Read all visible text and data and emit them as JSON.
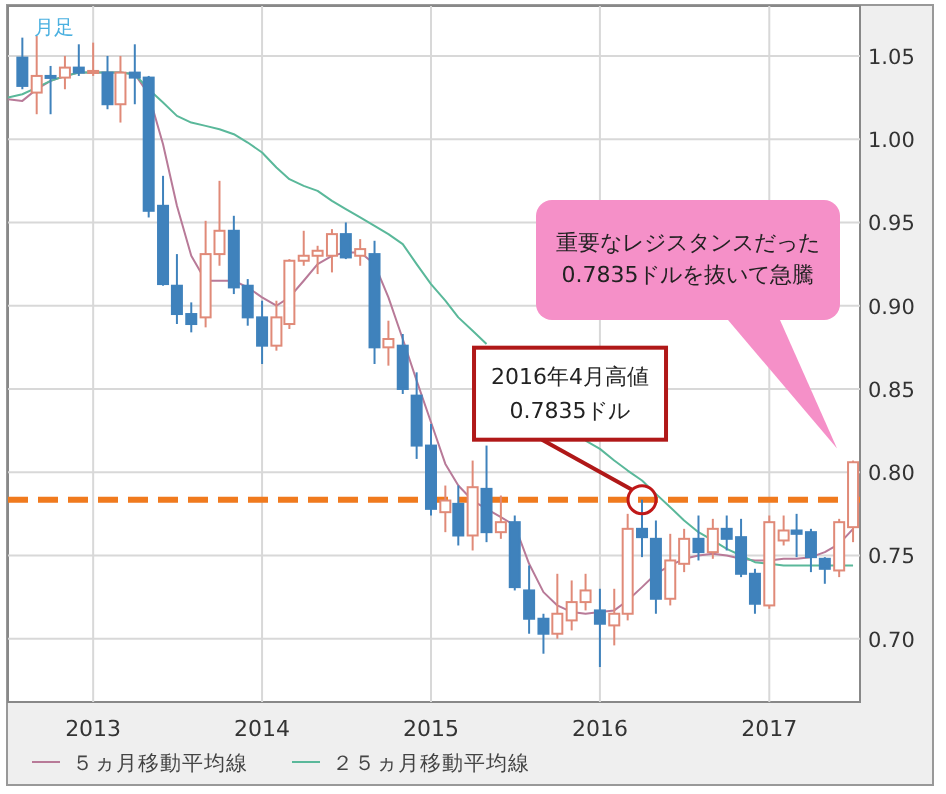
{
  "chart_data": {
    "type": "candlestick",
    "xlim": [
      "2012-07-01",
      "2017-07-16"
    ],
    "ylim": [
      0.662,
      1.08
    ],
    "xticks": [
      {
        "value": "2013-01-01",
        "label": "2013"
      },
      {
        "value": "2014-01-01",
        "label": "2014"
      },
      {
        "value": "2015-01-01",
        "label": "2015"
      },
      {
        "value": "2016-01-01",
        "label": "2016"
      },
      {
        "value": "2017-01-01",
        "label": "2017"
      }
    ],
    "yticks": [
      {
        "value": 0.7,
        "label": "0.70"
      },
      0.75,
      {
        "value": 0.8,
        "label": "0.80"
      },
      0.85,
      {
        "value": 0.9,
        "label": "0.90"
      },
      0.95,
      {
        "value": 1.0,
        "label": "1.00"
      },
      1.05
    ],
    "grid": true,
    "legend": "bottom",
    "x": [
      "2012-08",
      "2012-09",
      "2012-10",
      "2012-11",
      "2012-12",
      "2013-01",
      "2013-02",
      "2013-03",
      "2013-04",
      "2013-05",
      "2013-06",
      "2013-07",
      "2013-08",
      "2013-09",
      "2013-10",
      "2013-11",
      "2013-12",
      "2014-01",
      "2014-02",
      "2014-03",
      "2014-04",
      "2014-05",
      "2014-06",
      "2014-07",
      "2014-08",
      "2014-09",
      "2014-10",
      "2014-11",
      "2014-12",
      "2015-01",
      "2015-02",
      "2015-03",
      "2015-04",
      "2015-05",
      "2015-06",
      "2015-07",
      "2015-08",
      "2015-09",
      "2015-10",
      "2015-11",
      "2015-12",
      "2016-01",
      "2016-02",
      "2016-03",
      "2016-04",
      "2016-05",
      "2016-06",
      "2016-07",
      "2016-08",
      "2016-09",
      "2016-10",
      "2016-11",
      "2016-12",
      "2017-01",
      "2017-02",
      "2017-03",
      "2017-04",
      "2017-05",
      "2017-06",
      "2017-07"
    ],
    "ohlc": [
      [
        1.049,
        1.061,
        1.03,
        1.032
      ],
      [
        1.028,
        1.062,
        1.015,
        1.038
      ],
      [
        1.038,
        1.044,
        1.015,
        1.037
      ],
      [
        1.037,
        1.05,
        1.03,
        1.043
      ],
      [
        1.043,
        1.057,
        1.038,
        1.04
      ],
      [
        1.04,
        1.058,
        1.038,
        1.041
      ],
      [
        1.04,
        1.05,
        1.018,
        1.021
      ],
      [
        1.021,
        1.05,
        1.01,
        1.04
      ],
      [
        1.04,
        1.057,
        1.021,
        1.037
      ],
      [
        1.037,
        1.038,
        0.953,
        0.957
      ],
      [
        0.96,
        0.978,
        0.912,
        0.913
      ],
      [
        0.912,
        0.931,
        0.889,
        0.895
      ],
      [
        0.895,
        0.902,
        0.884,
        0.889
      ],
      [
        0.893,
        0.951,
        0.887,
        0.931
      ],
      [
        0.931,
        0.975,
        0.924,
        0.945
      ],
      [
        0.945,
        0.954,
        0.907,
        0.911
      ],
      [
        0.912,
        0.916,
        0.888,
        0.893
      ],
      [
        0.893,
        0.903,
        0.865,
        0.876
      ],
      [
        0.876,
        0.903,
        0.873,
        0.893
      ],
      [
        0.889,
        0.928,
        0.886,
        0.927
      ],
      [
        0.927,
        0.945,
        0.924,
        0.93
      ],
      [
        0.93,
        0.936,
        0.919,
        0.933
      ],
      [
        0.93,
        0.946,
        0.92,
        0.943
      ],
      [
        0.943,
        0.95,
        0.928,
        0.929
      ],
      [
        0.93,
        0.94,
        0.924,
        0.934
      ],
      [
        0.931,
        0.939,
        0.865,
        0.875
      ],
      [
        0.875,
        0.891,
        0.864,
        0.88
      ],
      [
        0.876,
        0.883,
        0.847,
        0.85
      ],
      [
        0.846,
        0.86,
        0.808,
        0.816
      ],
      [
        0.816,
        0.829,
        0.774,
        0.778
      ],
      [
        0.776,
        0.792,
        0.764,
        0.783
      ],
      [
        0.781,
        0.792,
        0.756,
        0.762
      ],
      [
        0.762,
        0.807,
        0.753,
        0.791
      ],
      [
        0.79,
        0.816,
        0.758,
        0.764
      ],
      [
        0.764,
        0.786,
        0.76,
        0.77
      ],
      [
        0.77,
        0.774,
        0.729,
        0.731
      ],
      [
        0.729,
        0.744,
        0.703,
        0.712
      ],
      [
        0.712,
        0.715,
        0.691,
        0.703
      ],
      [
        0.703,
        0.739,
        0.7,
        0.715
      ],
      [
        0.711,
        0.735,
        0.705,
        0.722
      ],
      [
        0.722,
        0.739,
        0.717,
        0.729
      ],
      [
        0.717,
        0.73,
        0.683,
        0.709
      ],
      [
        0.708,
        0.73,
        0.696,
        0.715
      ],
      [
        0.715,
        0.775,
        0.711,
        0.766
      ],
      [
        0.766,
        0.7835,
        0.749,
        0.761
      ],
      [
        0.76,
        0.771,
        0.715,
        0.724
      ],
      [
        0.724,
        0.763,
        0.72,
        0.747
      ],
      [
        0.745,
        0.766,
        0.74,
        0.76
      ],
      [
        0.76,
        0.774,
        0.747,
        0.752
      ],
      [
        0.752,
        0.772,
        0.748,
        0.766
      ],
      [
        0.766,
        0.774,
        0.753,
        0.76
      ],
      [
        0.761,
        0.772,
        0.737,
        0.739
      ],
      [
        0.739,
        0.742,
        0.715,
        0.721
      ],
      [
        0.72,
        0.774,
        0.718,
        0.77
      ],
      [
        0.759,
        0.774,
        0.756,
        0.765
      ],
      [
        0.765,
        0.775,
        0.749,
        0.763
      ],
      [
        0.764,
        0.766,
        0.74,
        0.749
      ],
      [
        0.748,
        0.749,
        0.733,
        0.742
      ],
      [
        0.741,
        0.772,
        0.737,
        0.77
      ],
      [
        0.767,
        0.807,
        0.758,
        0.806
      ]
    ],
    "colors": [
      "#3f82bc",
      "#e08a78",
      "#3f82bc",
      "#e08a78",
      "#3f82bc",
      "#e08a78",
      "#3f82bc",
      "#e08a78",
      "#3f82bc",
      "#3f82bc",
      "#3f82bc",
      "#3f82bc",
      "#3f82bc",
      "#e08a78",
      "#e08a78",
      "#3f82bc",
      "#3f82bc",
      "#3f82bc",
      "#e08a78",
      "#e08a78",
      "#e08a78",
      "#e08a78",
      "#e08a78",
      "#3f82bc",
      "#e08a78",
      "#3f82bc",
      "#e08a78",
      "#3f82bc",
      "#3f82bc",
      "#3f82bc",
      "#e08a78",
      "#3f82bc",
      "#e08a78",
      "#3f82bc",
      "#e08a78",
      "#3f82bc",
      "#3f82bc",
      "#3f82bc",
      "#e08a78",
      "#e08a78",
      "#e08a78",
      "#3f82bc",
      "#e08a78",
      "#e08a78",
      "#3f82bc",
      "#3f82bc",
      "#e08a78",
      "#e08a78",
      "#3f82bc",
      "#e08a78",
      "#3f82bc",
      "#3f82bc",
      "#3f82bc",
      "#e08a78",
      "#e08a78",
      "#3f82bc",
      "#3f82bc",
      "#3f82bc",
      "#e08a78",
      "#e08a78"
    ],
    "series": [
      {
        "name": "５ヵ月移動平均線",
        "type": "line",
        "color": "#b87a98",
        "x": [
          "2012-07",
          "2012-08",
          "2012-09",
          "2012-10",
          "2012-11",
          "2012-12",
          "2013-01",
          "2013-02",
          "2013-03",
          "2013-04",
          "2013-05",
          "2013-06",
          "2013-07",
          "2013-08",
          "2013-09",
          "2013-10",
          "2013-11",
          "2013-12",
          "2014-01",
          "2014-02",
          "2014-03",
          "2014-04",
          "2014-05",
          "2014-06",
          "2014-07",
          "2014-08",
          "2014-09",
          "2014-10",
          "2014-11",
          "2014-12",
          "2015-01",
          "2015-02",
          "2015-03",
          "2015-04",
          "2015-05",
          "2015-06",
          "2015-07",
          "2015-08",
          "2015-09",
          "2015-10",
          "2015-11",
          "2015-12",
          "2016-01",
          "2016-02",
          "2016-03",
          "2016-04",
          "2016-05",
          "2016-06",
          "2016-07",
          "2016-08",
          "2016-09",
          "2016-10",
          "2016-11",
          "2016-12",
          "2017-01",
          "2017-02",
          "2017-03",
          "2017-04",
          "2017-05",
          "2017-06",
          "2017-07"
        ],
        "values": [
          1.024,
          1.023,
          1.03,
          1.035,
          1.038,
          1.04,
          1.04,
          1.04,
          1.04,
          1.039,
          1.027,
          0.997,
          0.96,
          0.93,
          0.915,
          0.915,
          0.915,
          0.911,
          0.905,
          0.9,
          0.905,
          0.915,
          0.925,
          0.93,
          0.932,
          0.932,
          0.925,
          0.905,
          0.88,
          0.855,
          0.83,
          0.805,
          0.792,
          0.783,
          0.778,
          0.773,
          0.768,
          0.745,
          0.728,
          0.72,
          0.716,
          0.715,
          0.716,
          0.717,
          0.723,
          0.731,
          0.739,
          0.744,
          0.748,
          0.75,
          0.751,
          0.75,
          0.748,
          0.747,
          0.747,
          0.748,
          0.748,
          0.749,
          0.752,
          0.757,
          0.766
        ]
      },
      {
        "name": "２５ヵ月移動平均線",
        "type": "line",
        "color": "#5ab89a",
        "x": [
          "2012-07",
          "2012-08",
          "2012-09",
          "2012-10",
          "2012-11",
          "2012-12",
          "2013-01",
          "2013-02",
          "2013-03",
          "2013-04",
          "2013-05",
          "2013-06",
          "2013-07",
          "2013-08",
          "2013-09",
          "2013-10",
          "2013-11",
          "2013-12",
          "2014-01",
          "2014-02",
          "2014-03",
          "2014-04",
          "2014-05",
          "2014-06",
          "2014-07",
          "2014-08",
          "2014-09",
          "2014-10",
          "2014-11",
          "2014-12",
          "2015-01",
          "2015-02",
          "2015-03",
          "2015-04",
          "2015-05",
          "2015-06",
          "2015-07",
          "2015-08",
          "2015-09",
          "2015-10",
          "2015-11",
          "2015-12",
          "2016-01",
          "2016-02",
          "2016-03",
          "2016-04",
          "2016-05",
          "2016-06",
          "2016-07",
          "2016-08",
          "2016-09",
          "2016-10",
          "2016-11",
          "2016-12",
          "2017-01",
          "2017-02",
          "2017-03",
          "2017-04",
          "2017-05",
          "2017-06",
          "2017-07"
        ],
        "values": [
          1.025,
          1.027,
          1.031,
          1.035,
          1.038,
          1.04,
          1.04,
          1.04,
          1.04,
          1.039,
          1.03,
          1.022,
          1.014,
          1.01,
          1.008,
          1.006,
          1.003,
          0.998,
          0.992,
          0.983,
          0.976,
          0.972,
          0.969,
          0.963,
          0.958,
          0.953,
          0.948,
          0.943,
          0.937,
          0.925,
          0.913,
          0.903,
          0.893,
          0.885,
          0.877,
          null,
          null,
          null,
          null,
          null,
          null,
          0.819,
          0.814,
          0.807,
          0.801,
          0.795,
          0.787,
          0.779,
          0.771,
          0.764,
          0.759,
          0.754,
          0.75,
          0.746,
          0.745,
          0.744,
          0.744,
          0.744,
          0.744,
          0.744,
          0.744
        ]
      }
    ],
    "ref_lines": [
      {
        "axis": "y",
        "value": 0.7835,
        "color": "#f07a1e",
        "line_style": "dashed"
      }
    ],
    "annotations": [
      "月足",
      {
        "text": "2016年4月高値\n0.7835ドル",
        "x": "2016-04",
        "y": 0.7835
      },
      "重要なレジスタンスだった\n0.7835ドルを抜いて急騰"
    ]
  }
}
